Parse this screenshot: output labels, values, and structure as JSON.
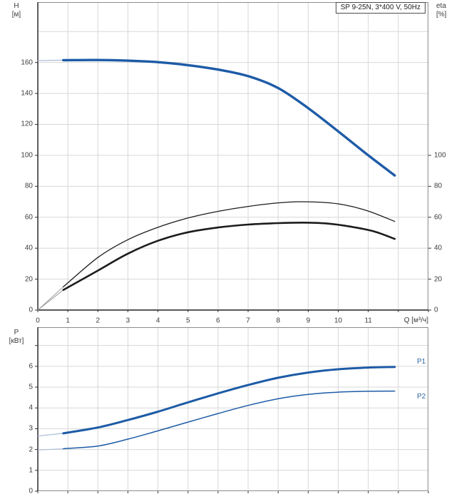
{
  "header": {
    "title_box": "SP 9-25N, 3*400 V, 50Hz"
  },
  "colors": {
    "curve_blue": "#1d5ba6",
    "curve_blue_lead": "#a8bcd8",
    "curve_black": "#1c1c1c",
    "curve_black_lead": "#a0a0a0",
    "gridline": "#d7d7d7",
    "border": "#8c8c8c",
    "axis_dark": "#333333",
    "tick_text": "#3c3c3c",
    "label_blue": "#2e66a3"
  },
  "chart_data": [
    {
      "type": "line",
      "name": "head-and-efficiency-curves",
      "x": {
        "label": "Q [м³/ч]",
        "lim": [
          0,
          13
        ],
        "ticks": [
          0,
          1,
          2,
          3,
          4,
          5,
          6,
          7,
          8,
          9,
          10,
          11
        ],
        "gridlines": [
          1,
          2,
          3,
          4,
          5,
          6,
          7,
          8,
          9,
          10,
          11,
          12
        ]
      },
      "y_left": {
        "symbol": "H",
        "unit": "[м]",
        "lim": [
          0,
          199
        ],
        "ticks": [
          0,
          20,
          40,
          60,
          80,
          100,
          120,
          140,
          160
        ],
        "gridlines": [
          20,
          40,
          60,
          80,
          100,
          120,
          140,
          160,
          180
        ]
      },
      "y_right": {
        "symbol": "eta",
        "unit": "[%]",
        "ticks": [
          0,
          20,
          40,
          60,
          80,
          100
        ],
        "note": "eta scale aligned so 100% coincides with H=100 м"
      },
      "series": [
        {
          "name": "H",
          "axis": "left",
          "color": "#1d5ba6",
          "width": 3.4,
          "lead_color": "#a8bcd8",
          "lead_width": 1.3,
          "lead": [
            [
              0,
              161.2
            ],
            [
              0.85,
              161.5
            ]
          ],
          "points": [
            [
              0.85,
              161.5
            ],
            [
              2,
              161.6
            ],
            [
              3,
              161.2
            ],
            [
              4,
              160.2
            ],
            [
              5,
              158.3
            ],
            [
              6,
              155.4
            ],
            [
              7,
              151.2
            ],
            [
              8,
              143.5
            ],
            [
              9,
              130.5
            ],
            [
              10,
              115.5
            ],
            [
              11,
              100
            ],
            [
              11.88,
              87
            ]
          ]
        },
        {
          "name": "eta-pump",
          "axis": "right",
          "color": "#1c1c1c",
          "width": 1.3,
          "lead_color": "#a0a0a0",
          "lead_width": 1.1,
          "lead": [
            [
              0,
              0
            ],
            [
              0.85,
              15
            ]
          ],
          "points": [
            [
              0.85,
              15
            ],
            [
              2,
              34
            ],
            [
              3,
              45.5
            ],
            [
              4,
              53.5
            ],
            [
              5,
              59.5
            ],
            [
              6,
              63.8
            ],
            [
              7,
              67
            ],
            [
              8,
              69.3
            ],
            [
              8.7,
              70
            ],
            [
              9.5,
              69.6
            ],
            [
              10.2,
              68
            ],
            [
              11,
              64
            ],
            [
              11.88,
              57.3
            ]
          ]
        },
        {
          "name": "eta-pump-plus-motor",
          "axis": "right",
          "color": "#1c1c1c",
          "width": 2.6,
          "lead_color": "#a0a0a0",
          "lead_width": 1.1,
          "lead": [
            [
              0,
              0
            ],
            [
              0.85,
              13
            ]
          ],
          "points": [
            [
              0.85,
              13
            ],
            [
              2,
              25.5
            ],
            [
              3,
              36.5
            ],
            [
              4,
              44.8
            ],
            [
              5,
              50.3
            ],
            [
              6,
              53.4
            ],
            [
              7,
              55.3
            ],
            [
              8,
              56.2
            ],
            [
              8.8,
              56.5
            ],
            [
              9.6,
              56
            ],
            [
              10.4,
              54
            ],
            [
              11.2,
              50.8
            ],
            [
              11.88,
              46
            ]
          ]
        }
      ]
    },
    {
      "type": "line",
      "name": "power-curves",
      "x": {
        "label": "",
        "lim": [
          0,
          13
        ],
        "ticks": [],
        "gridlines": [
          1,
          2,
          3,
          4,
          5,
          6,
          7,
          8,
          9,
          10,
          11,
          12
        ]
      },
      "y_left": {
        "symbol": "P",
        "unit": "[кВт]",
        "lim": [
          0,
          7.88
        ],
        "ticks": [
          0,
          1,
          2,
          3,
          4,
          5,
          6
        ],
        "gridlines": [
          1,
          2,
          3,
          4,
          5,
          6,
          7
        ]
      },
      "series": [
        {
          "name": "P1",
          "label": "P1",
          "axis": "left",
          "color": "#1d5ba6",
          "width": 3.0,
          "lead_color": "#a8bcd8",
          "lead_width": 1.2,
          "lead": [
            [
              0,
              2.65
            ],
            [
              0.85,
              2.78
            ]
          ],
          "points": [
            [
              0.85,
              2.78
            ],
            [
              2,
              3.06
            ],
            [
              3,
              3.42
            ],
            [
              4,
              3.82
            ],
            [
              5,
              4.27
            ],
            [
              6,
              4.7
            ],
            [
              7,
              5.1
            ],
            [
              8,
              5.45
            ],
            [
              9,
              5.7
            ],
            [
              10,
              5.86
            ],
            [
              11,
              5.94
            ],
            [
              11.88,
              5.97
            ]
          ]
        },
        {
          "name": "P2",
          "label": "P2",
          "axis": "left",
          "color": "#1d5ba6",
          "width": 1.5,
          "lead_color": "#a8bcd8",
          "lead_width": 1.1,
          "lead": [
            [
              0,
              1.98
            ],
            [
              0.85,
              2.04
            ]
          ],
          "points": [
            [
              0.85,
              2.04
            ],
            [
              2,
              2.17
            ],
            [
              3,
              2.5
            ],
            [
              4,
              2.9
            ],
            [
              5,
              3.32
            ],
            [
              6,
              3.73
            ],
            [
              7,
              4.12
            ],
            [
              8,
              4.44
            ],
            [
              9,
              4.65
            ],
            [
              10,
              4.76
            ],
            [
              11,
              4.8
            ],
            [
              11.88,
              4.81
            ]
          ]
        }
      ]
    }
  ]
}
